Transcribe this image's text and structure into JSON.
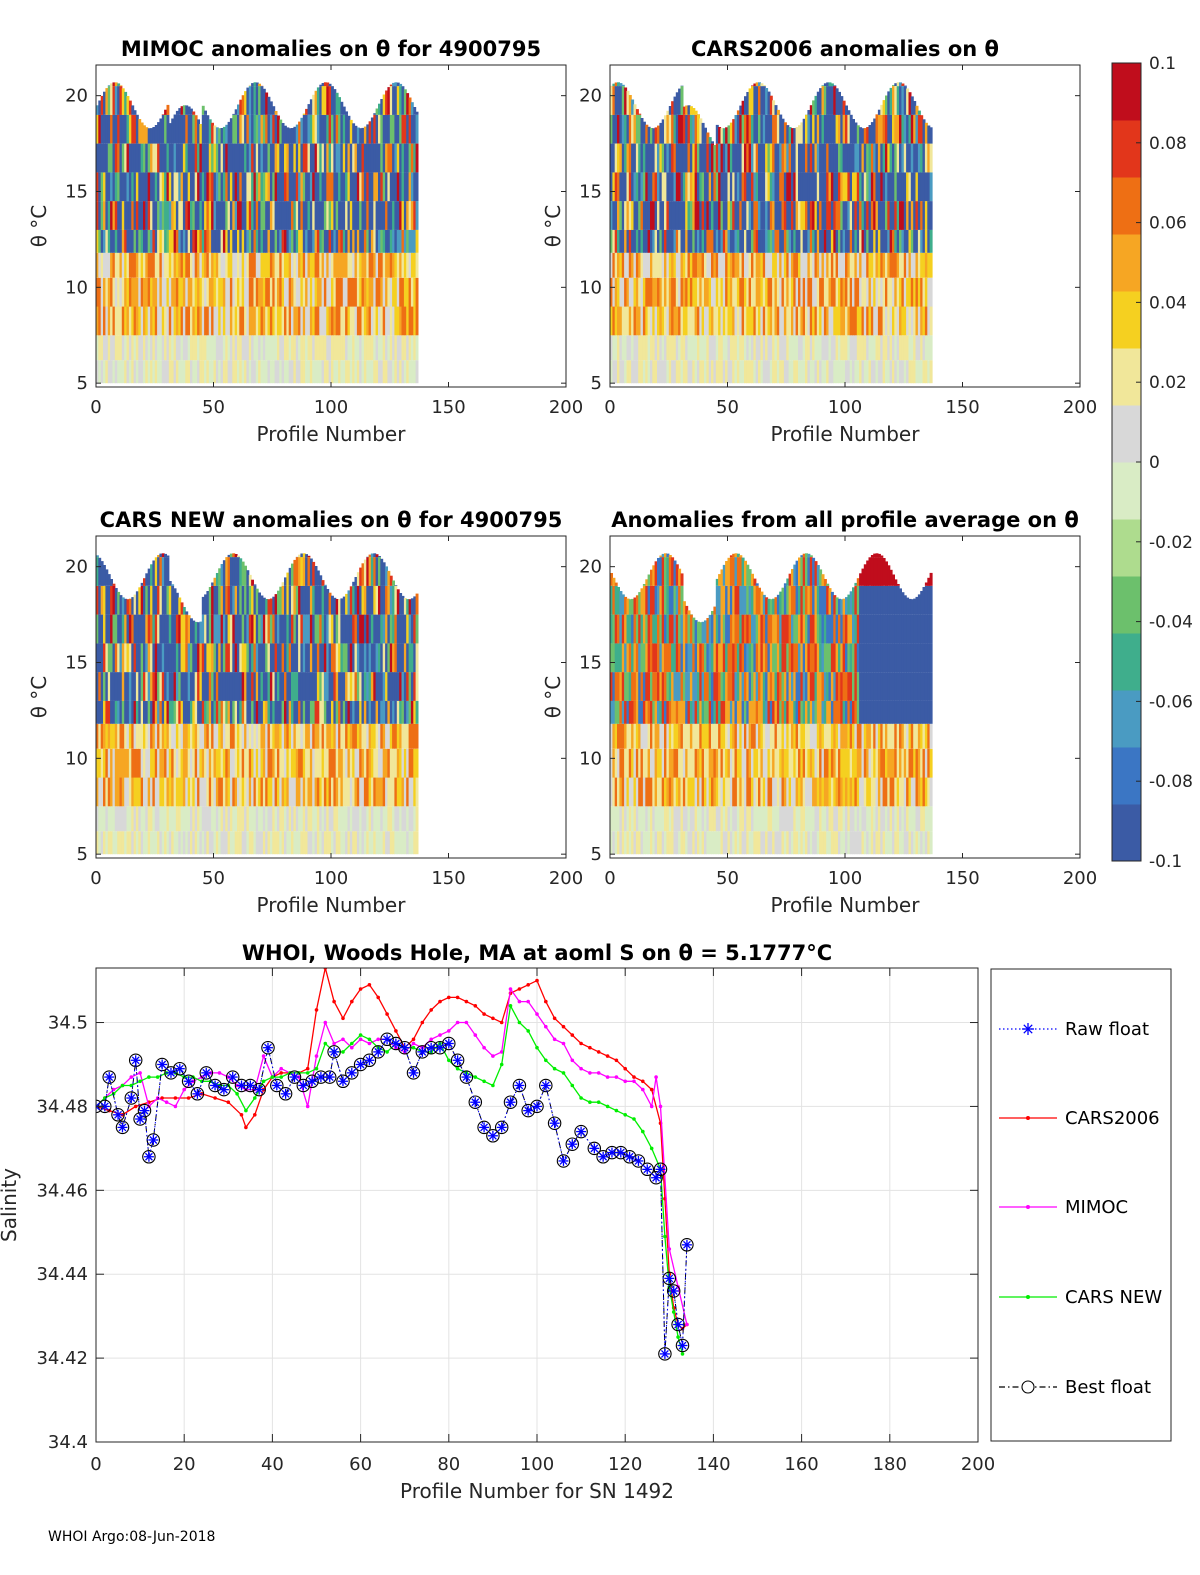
{
  "panels": [
    {
      "id": "mimoc",
      "title": "MIMOC anomalies on θ  for 4900795",
      "xlabel": "Profile Number",
      "ylabel": "θ °C",
      "xticks": [
        "0",
        "50",
        "100",
        "150",
        "200"
      ],
      "yticks": [
        "5",
        "10",
        "15",
        "20"
      ],
      "xlim": [
        0,
        200
      ],
      "ylim": [
        4.8,
        21.6
      ],
      "data_end": 137
    },
    {
      "id": "cars2006",
      "title": "CARS2006 anomalies on θ",
      "xlabel": "Profile Number",
      "ylabel": "θ °C",
      "xticks": [
        "0",
        "50",
        "100",
        "150",
        "200"
      ],
      "yticks": [
        "5",
        "10",
        "15",
        "20"
      ],
      "xlim": [
        0,
        200
      ],
      "ylim": [
        4.8,
        21.6
      ],
      "data_end": 137
    },
    {
      "id": "carsnew",
      "title": "CARS NEW anomalies on θ for 4900795",
      "xlabel": "Profile Number",
      "ylabel": "θ °C",
      "xticks": [
        "0",
        "50",
        "100",
        "150",
        "200"
      ],
      "yticks": [
        "5",
        "10",
        "15",
        "20"
      ],
      "xlim": [
        0,
        200
      ],
      "ylim": [
        4.8,
        21.6
      ],
      "data_end": 137
    },
    {
      "id": "allavg",
      "title": "Anomalies from all profile average on θ",
      "xlabel": "Profile Number",
      "ylabel": "θ °C",
      "xticks": [
        "0",
        "50",
        "100",
        "150",
        "200"
      ],
      "yticks": [
        "5",
        "10",
        "15",
        "20"
      ],
      "xlim": [
        0,
        200
      ],
      "ylim": [
        4.8,
        21.6
      ],
      "data_end": 137
    }
  ],
  "colorbar": {
    "ticks": [
      "0.1",
      "0.08",
      "0.06",
      "0.04",
      "0.02",
      "0",
      "-0.02",
      "-0.04",
      "-0.06",
      "-0.08",
      "-0.1"
    ],
    "range": [
      -0.1,
      0.1
    ],
    "colors": [
      "#3b5ba5",
      "#3b76c4",
      "#4a9bc2",
      "#3fae8c",
      "#6cc06c",
      "#aedc8e",
      "#d9ecc5",
      "#d8d8d8",
      "#f1e79a",
      "#f5d020",
      "#f6a623",
      "#ee6f14",
      "#e2361b",
      "#c00d1c"
    ]
  },
  "chart_data": {
    "type": "line",
    "title": "WHOI, Woods Hole, MA at aoml S on θ = 5.1777°C",
    "xlabel": "Profile Number for SN 1492",
    "ylabel": "Salinity",
    "xlim": [
      0,
      200
    ],
    "ylim": [
      34.4,
      34.513
    ],
    "xticks": [
      "0",
      "20",
      "40",
      "60",
      "80",
      "100",
      "120",
      "140",
      "160",
      "180",
      "200"
    ],
    "yticks": [
      "34.4",
      "34.42",
      "34.44",
      "34.46",
      "34.48",
      "34.5"
    ],
    "grid": true,
    "legend_position": "right-outside",
    "series": [
      {
        "name": "Raw float",
        "color": "#0000ff",
        "x": [
          0,
          2,
          3,
          5,
          6,
          8,
          9,
          10,
          11,
          12,
          13,
          15,
          17,
          19,
          21,
          23,
          25,
          27,
          29,
          31,
          33,
          35,
          37,
          39,
          41,
          43,
          45,
          47,
          49,
          51,
          53,
          54,
          56,
          58,
          60,
          62,
          64,
          66,
          68,
          70,
          72,
          74,
          76,
          78,
          80,
          82,
          84,
          86,
          88,
          90,
          92,
          94,
          96,
          98,
          100,
          102,
          104,
          106,
          108,
          110,
          113,
          115,
          117,
          119,
          121,
          123,
          125,
          127,
          128,
          129,
          130,
          131,
          132,
          133,
          134
        ],
        "y": [
          34.48,
          34.48,
          34.487,
          34.478,
          34.475,
          34.482,
          34.491,
          34.477,
          34.479,
          34.468,
          34.472,
          34.49,
          34.488,
          34.489,
          34.486,
          34.483,
          34.488,
          34.485,
          34.484,
          34.487,
          34.485,
          34.485,
          34.484,
          34.494,
          34.485,
          34.483,
          34.487,
          34.485,
          34.486,
          34.487,
          34.487,
          34.493,
          34.486,
          34.488,
          34.49,
          34.491,
          34.493,
          34.496,
          34.495,
          34.494,
          34.488,
          34.493,
          34.494,
          34.494,
          34.495,
          34.491,
          34.487,
          34.481,
          34.475,
          34.473,
          34.475,
          34.481,
          34.485,
          34.479,
          34.48,
          34.485,
          34.476,
          34.467,
          34.471,
          34.474,
          34.47,
          34.468,
          34.469,
          34.469,
          34.468,
          34.467,
          34.465,
          34.463,
          34.465,
          34.421,
          34.439,
          34.436,
          34.428,
          34.423,
          34.447
        ]
      },
      {
        "name": "CARS2006",
        "color": "#ff0000",
        "x": [
          0,
          3,
          6,
          9,
          12,
          15,
          18,
          21,
          24,
          27,
          30,
          33,
          34,
          36,
          38,
          40,
          42,
          44,
          46,
          48,
          50,
          52,
          54,
          56,
          58,
          60,
          62,
          64,
          66,
          68,
          70,
          72,
          74,
          76,
          78,
          80,
          82,
          84,
          86,
          88,
          90,
          92,
          94,
          96,
          98,
          100,
          102,
          104,
          106,
          108,
          110,
          112,
          114,
          116,
          118,
          120,
          122,
          124,
          126,
          128,
          129,
          130,
          131,
          132,
          133,
          134
        ],
        "y": [
          34.48,
          34.479,
          34.478,
          34.48,
          34.481,
          34.482,
          34.482,
          34.482,
          34.483,
          34.482,
          34.481,
          34.478,
          34.475,
          34.478,
          34.484,
          34.487,
          34.488,
          34.488,
          34.488,
          34.489,
          34.503,
          34.513,
          34.505,
          34.501,
          34.505,
          34.508,
          34.509,
          34.506,
          34.502,
          34.498,
          34.494,
          34.496,
          34.5,
          34.503,
          34.505,
          34.506,
          34.506,
          34.505,
          34.504,
          34.502,
          34.501,
          34.5,
          34.507,
          34.508,
          34.509,
          34.51,
          34.505,
          34.501,
          34.499,
          34.497,
          34.495,
          34.494,
          34.493,
          34.492,
          34.491,
          34.489,
          34.487,
          34.486,
          34.484,
          34.476,
          34.458,
          34.44,
          34.432,
          34.428,
          34.427,
          34.428
        ]
      },
      {
        "name": "MIMOC",
        "color": "#ff00ff",
        "x": [
          0,
          2,
          4,
          6,
          8,
          10,
          12,
          14,
          16,
          18,
          20,
          22,
          24,
          26,
          28,
          30,
          32,
          34,
          36,
          38,
          40,
          42,
          44,
          46,
          48,
          50,
          52,
          54,
          56,
          58,
          60,
          62,
          64,
          66,
          68,
          70,
          72,
          74,
          76,
          78,
          80,
          82,
          84,
          86,
          88,
          90,
          92,
          94,
          96,
          98,
          100,
          102,
          104,
          106,
          108,
          110,
          112,
          114,
          116,
          118,
          120,
          122,
          124,
          126,
          127,
          128,
          130,
          132,
          134
        ],
        "y": [
          34.48,
          34.482,
          34.484,
          34.485,
          34.487,
          34.488,
          34.48,
          34.482,
          34.481,
          34.48,
          34.484,
          34.486,
          34.487,
          34.488,
          34.488,
          34.487,
          34.485,
          34.484,
          34.484,
          34.492,
          34.487,
          34.489,
          34.488,
          34.487,
          34.48,
          34.492,
          34.5,
          34.495,
          34.496,
          34.494,
          34.496,
          34.495,
          34.496,
          34.496,
          34.494,
          34.493,
          34.495,
          34.494,
          34.496,
          34.497,
          34.498,
          34.5,
          34.5,
          34.497,
          34.494,
          34.492,
          34.493,
          34.508,
          34.505,
          34.505,
          34.502,
          34.499,
          34.496,
          34.495,
          34.491,
          34.489,
          34.488,
          34.488,
          34.487,
          34.487,
          34.486,
          34.486,
          34.484,
          34.48,
          34.487,
          34.48,
          34.446,
          34.437,
          34.428
        ]
      },
      {
        "name": "CARS NEW",
        "color": "#00ee00",
        "x": [
          0,
          2,
          4,
          6,
          8,
          10,
          12,
          14,
          16,
          18,
          20,
          22,
          24,
          26,
          28,
          30,
          32,
          34,
          36,
          38,
          40,
          42,
          44,
          46,
          48,
          50,
          52,
          54,
          56,
          58,
          60,
          62,
          64,
          66,
          68,
          70,
          72,
          74,
          76,
          78,
          80,
          82,
          84,
          86,
          88,
          90,
          92,
          94,
          96,
          98,
          100,
          102,
          104,
          106,
          108,
          110,
          112,
          114,
          116,
          118,
          120,
          122,
          124,
          126,
          128,
          129,
          130,
          131,
          132,
          133
        ],
        "y": [
          34.48,
          34.482,
          34.483,
          34.485,
          34.485,
          34.486,
          34.487,
          34.487,
          34.488,
          34.488,
          34.487,
          34.487,
          34.486,
          34.486,
          34.485,
          34.485,
          34.483,
          34.479,
          34.482,
          34.486,
          34.487,
          34.487,
          34.488,
          34.488,
          34.488,
          34.489,
          34.495,
          34.493,
          34.493,
          34.495,
          34.497,
          34.496,
          34.494,
          34.493,
          34.495,
          34.494,
          34.494,
          34.493,
          34.493,
          34.495,
          34.491,
          34.489,
          34.488,
          34.487,
          34.486,
          34.485,
          34.49,
          34.504,
          34.5,
          34.498,
          34.494,
          34.491,
          34.489,
          34.488,
          34.485,
          34.482,
          34.481,
          34.481,
          34.48,
          34.479,
          34.478,
          34.477,
          34.474,
          34.47,
          34.465,
          34.449,
          34.437,
          34.431,
          34.425,
          34.421
        ]
      },
      {
        "name": "Best float",
        "color": "#000000",
        "x": [
          0,
          2,
          3,
          5,
          6,
          8,
          9,
          10,
          11,
          12,
          13,
          15,
          17,
          19,
          21,
          23,
          25,
          27,
          29,
          31,
          33,
          35,
          37,
          39,
          41,
          43,
          45,
          47,
          49,
          51,
          53,
          54,
          56,
          58,
          60,
          62,
          64,
          66,
          68,
          70,
          72,
          74,
          76,
          78,
          80,
          82,
          84,
          86,
          88,
          90,
          92,
          94,
          96,
          98,
          100,
          102,
          104,
          106,
          108,
          110,
          113,
          115,
          117,
          119,
          121,
          123,
          125,
          127,
          128,
          129,
          130,
          131,
          132,
          133,
          134
        ],
        "y": [
          34.48,
          34.48,
          34.487,
          34.478,
          34.475,
          34.482,
          34.491,
          34.477,
          34.479,
          34.468,
          34.472,
          34.49,
          34.488,
          34.489,
          34.486,
          34.483,
          34.488,
          34.485,
          34.484,
          34.487,
          34.485,
          34.485,
          34.484,
          34.494,
          34.485,
          34.483,
          34.487,
          34.485,
          34.486,
          34.487,
          34.487,
          34.493,
          34.486,
          34.488,
          34.49,
          34.491,
          34.493,
          34.496,
          34.495,
          34.494,
          34.488,
          34.493,
          34.494,
          34.494,
          34.495,
          34.491,
          34.487,
          34.481,
          34.475,
          34.473,
          34.475,
          34.481,
          34.485,
          34.479,
          34.48,
          34.485,
          34.476,
          34.467,
          34.471,
          34.474,
          34.47,
          34.468,
          34.469,
          34.469,
          34.468,
          34.467,
          34.465,
          34.463,
          34.465,
          34.421,
          34.439,
          34.436,
          34.428,
          34.423,
          34.447
        ]
      }
    ]
  },
  "footer": "WHOI Argo:08-Jun-2018"
}
